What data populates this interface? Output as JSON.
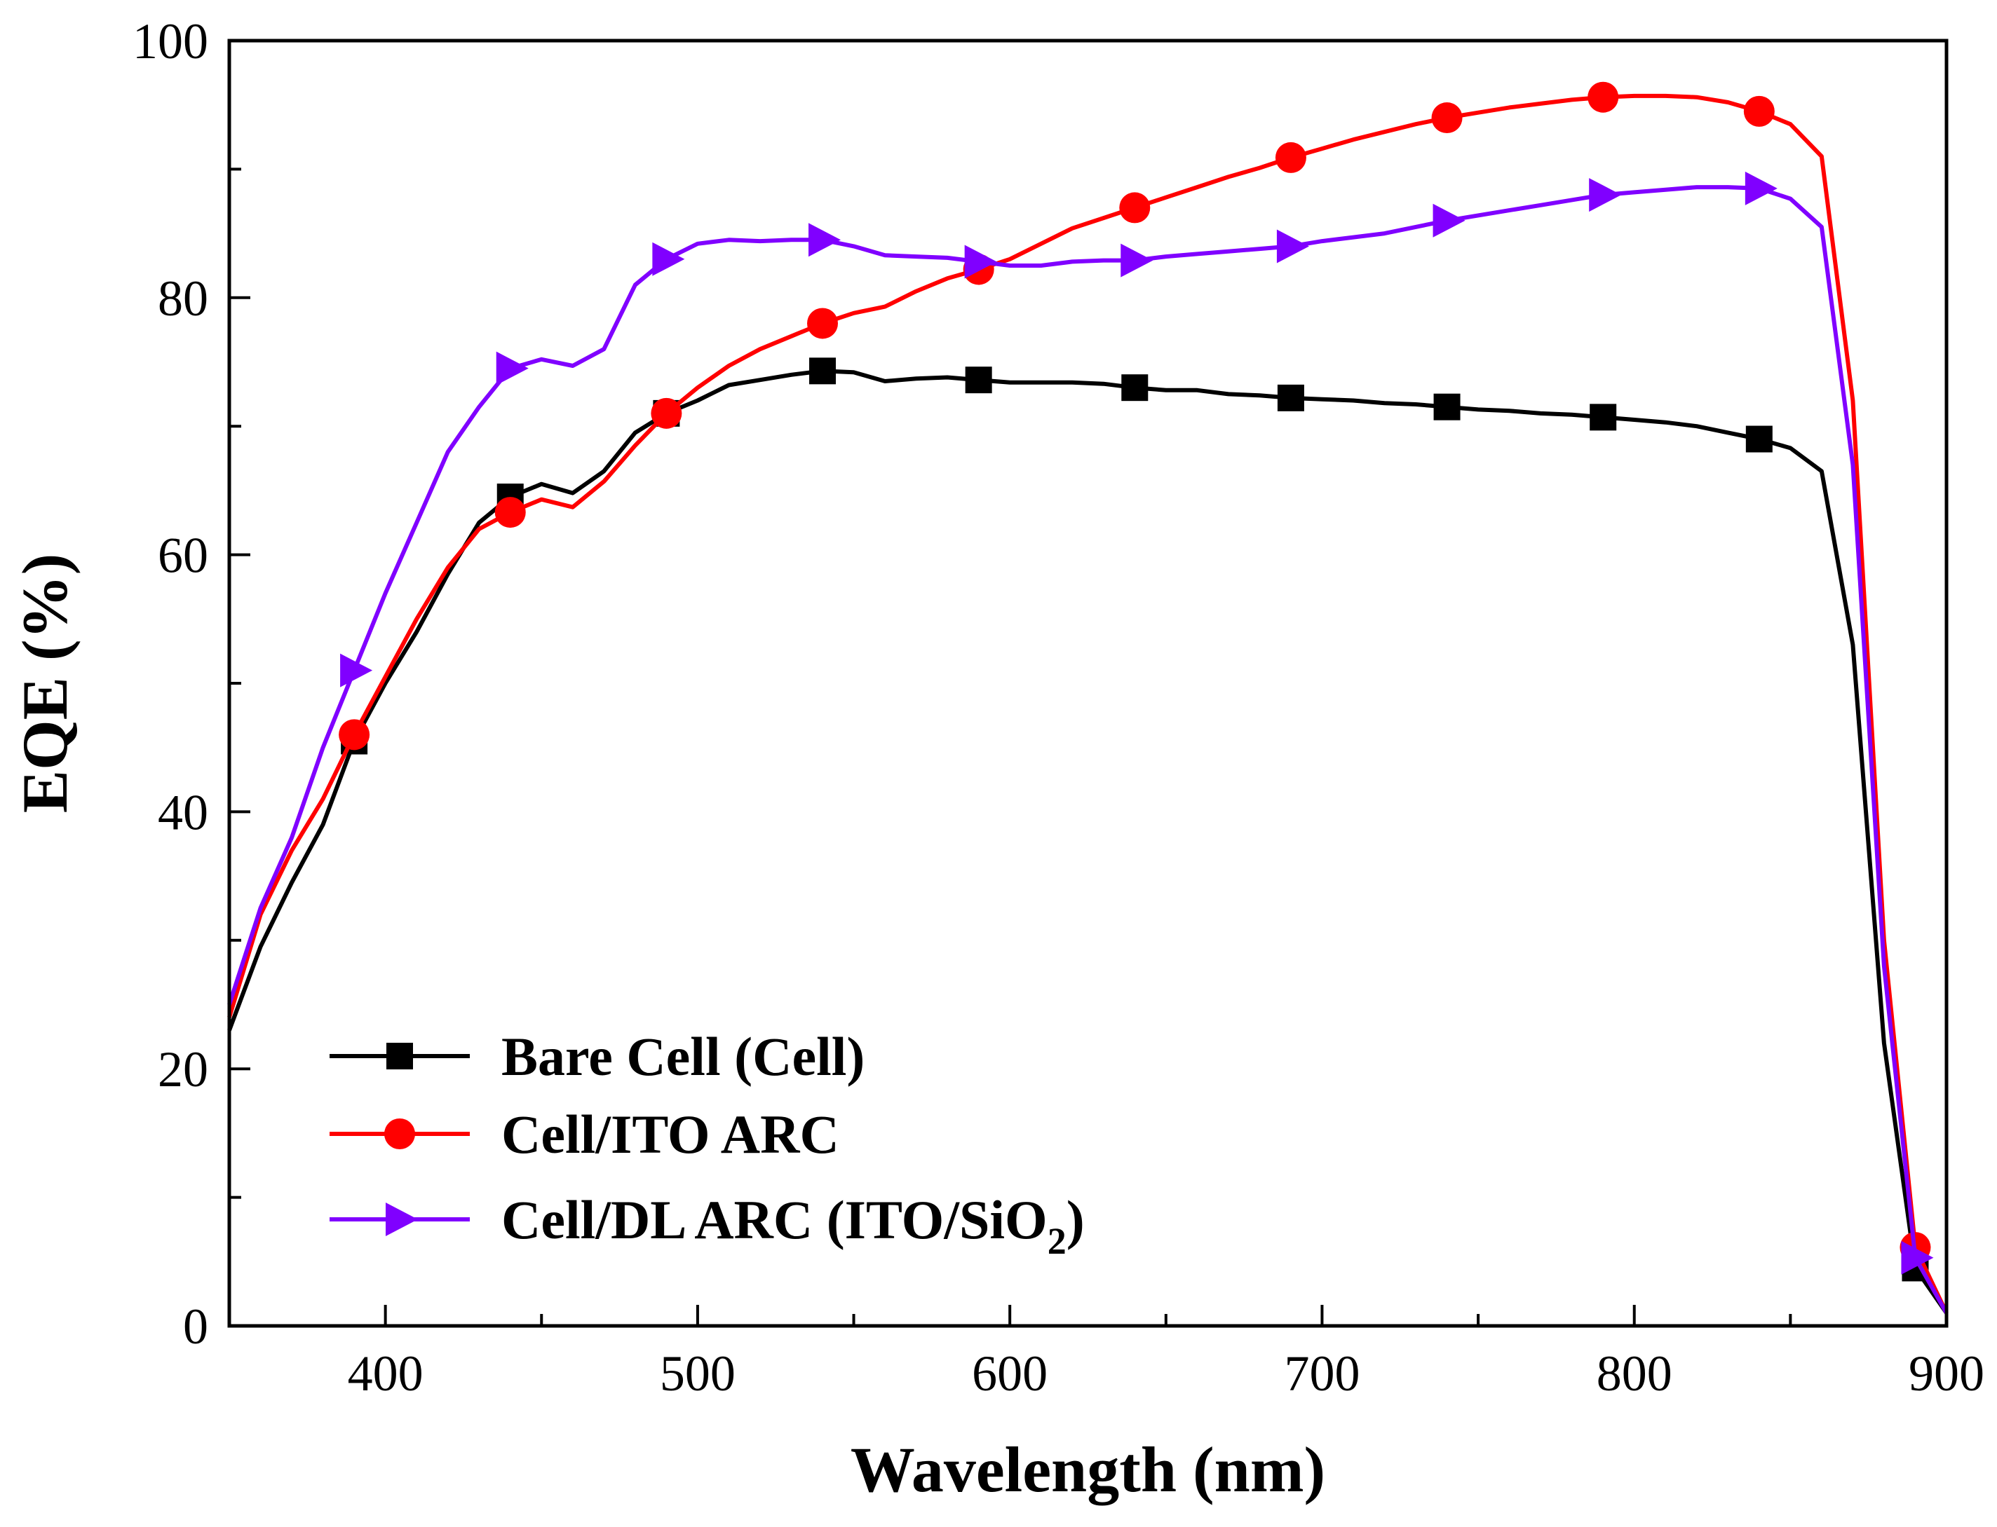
{
  "chart_data": {
    "type": "line",
    "title": "",
    "xlabel": "Wavelength (nm)",
    "ylabel": "EQE (%)",
    "xlim": [
      350,
      900
    ],
    "ylim": [
      0,
      100
    ],
    "xticks": [
      400,
      500,
      600,
      700,
      800,
      900
    ],
    "yticks": [
      0,
      20,
      40,
      60,
      80,
      100
    ],
    "x_minor_step": 50,
    "y_minor_step": 10,
    "grid": false,
    "legend_position": "bottom-left",
    "x": [
      350,
      360,
      370,
      380,
      390,
      400,
      410,
      420,
      430,
      440,
      450,
      460,
      470,
      480,
      490,
      500,
      510,
      520,
      530,
      540,
      550,
      560,
      570,
      580,
      590,
      600,
      610,
      620,
      630,
      640,
      650,
      660,
      670,
      680,
      690,
      700,
      710,
      720,
      730,
      740,
      750,
      760,
      770,
      780,
      790,
      800,
      810,
      820,
      830,
      840,
      850,
      860,
      870,
      880,
      890,
      900
    ],
    "series": [
      {
        "name": "Bare Cell (Cell)",
        "color": "#000000",
        "marker": "square",
        "values": [
          23,
          29.5,
          34.5,
          39,
          45.5,
          50,
          54,
          58.5,
          62.5,
          64.5,
          65.5,
          64.8,
          66.5,
          69.5,
          71,
          72,
          73.2,
          73.6,
          74,
          74.3,
          74.2,
          73.5,
          73.7,
          73.8,
          73.6,
          73.4,
          73.4,
          73.4,
          73.3,
          73,
          72.8,
          72.8,
          72.5,
          72.4,
          72.2,
          72.1,
          72,
          71.8,
          71.7,
          71.5,
          71.3,
          71.2,
          71,
          70.9,
          70.7,
          70.5,
          70.3,
          70,
          69.5,
          69,
          68.3,
          66.5,
          53,
          22,
          4.5,
          1
        ]
      },
      {
        "name": "Cell/ITO ARC",
        "color": "#ff0000",
        "marker": "circle",
        "values": [
          24,
          32,
          37,
          41,
          46,
          50.5,
          55,
          59,
          62,
          63.3,
          64.3,
          63.7,
          65.7,
          68.5,
          71,
          73,
          74.7,
          76,
          77,
          78,
          78.8,
          79.3,
          80.5,
          81.5,
          82.2,
          83,
          84.2,
          85.4,
          86.2,
          87,
          87.8,
          88.6,
          89.4,
          90.1,
          90.9,
          91.6,
          92.3,
          92.9,
          93.5,
          94,
          94.4,
          94.8,
          95.1,
          95.4,
          95.6,
          95.7,
          95.7,
          95.6,
          95.2,
          94.5,
          93.5,
          91,
          72,
          30,
          6.1,
          1
        ]
      },
      {
        "name": "Cell/DL ARC (ITO/SiO2)",
        "label_main": "Cell/DL ARC (ITO/SiO",
        "label_sub": "2",
        "label_end": ")",
        "color": "#8000ff",
        "marker": "triangle-right",
        "values": [
          25,
          32.5,
          38,
          45,
          51,
          57,
          62.5,
          68,
          71.5,
          74.5,
          75.2,
          74.7,
          76,
          81,
          83,
          84.2,
          84.5,
          84.4,
          84.5,
          84.5,
          84,
          83.3,
          83.2,
          83.1,
          82.8,
          82.5,
          82.5,
          82.8,
          82.9,
          82.9,
          83.2,
          83.4,
          83.6,
          83.8,
          84,
          84.4,
          84.7,
          85,
          85.5,
          86,
          86.4,
          86.8,
          87.2,
          87.6,
          88,
          88.2,
          88.4,
          88.6,
          88.6,
          88.5,
          87.7,
          85.5,
          67,
          28,
          5.3,
          1
        ]
      }
    ],
    "marker_x": [
      390,
      440,
      490,
      540,
      590,
      640,
      690,
      740,
      790,
      840,
      890
    ]
  }
}
